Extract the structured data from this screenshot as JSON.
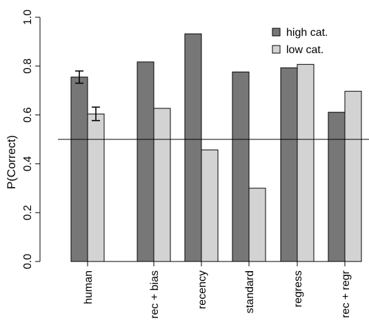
{
  "chart_data": {
    "type": "bar",
    "title": "",
    "xlabel": "",
    "ylabel": "P(Correct)",
    "ylim": [
      0,
      1
    ],
    "yticks": [
      "0.0",
      "0.2",
      "0.4",
      "0.6",
      "0.8",
      "1.0"
    ],
    "categories": [
      "human",
      "rec + bias",
      "recency",
      "standard",
      "regress",
      "rec + regr"
    ],
    "series": [
      {
        "name": "high cat.",
        "color": "#777777",
        "values": [
          0.755,
          0.817,
          0.932,
          0.776,
          0.793,
          0.611
        ]
      },
      {
        "name": "low cat.",
        "color": "#d3d3d3",
        "values": [
          0.604,
          0.627,
          0.457,
          0.3,
          0.807,
          0.697
        ]
      }
    ],
    "error_bars": {
      "category": "human",
      "ranges": [
        [
          0.73,
          0.78
        ],
        [
          0.577,
          0.632
        ]
      ]
    },
    "reference_line": 0.5,
    "legend_position": "top-right",
    "grid": false
  }
}
